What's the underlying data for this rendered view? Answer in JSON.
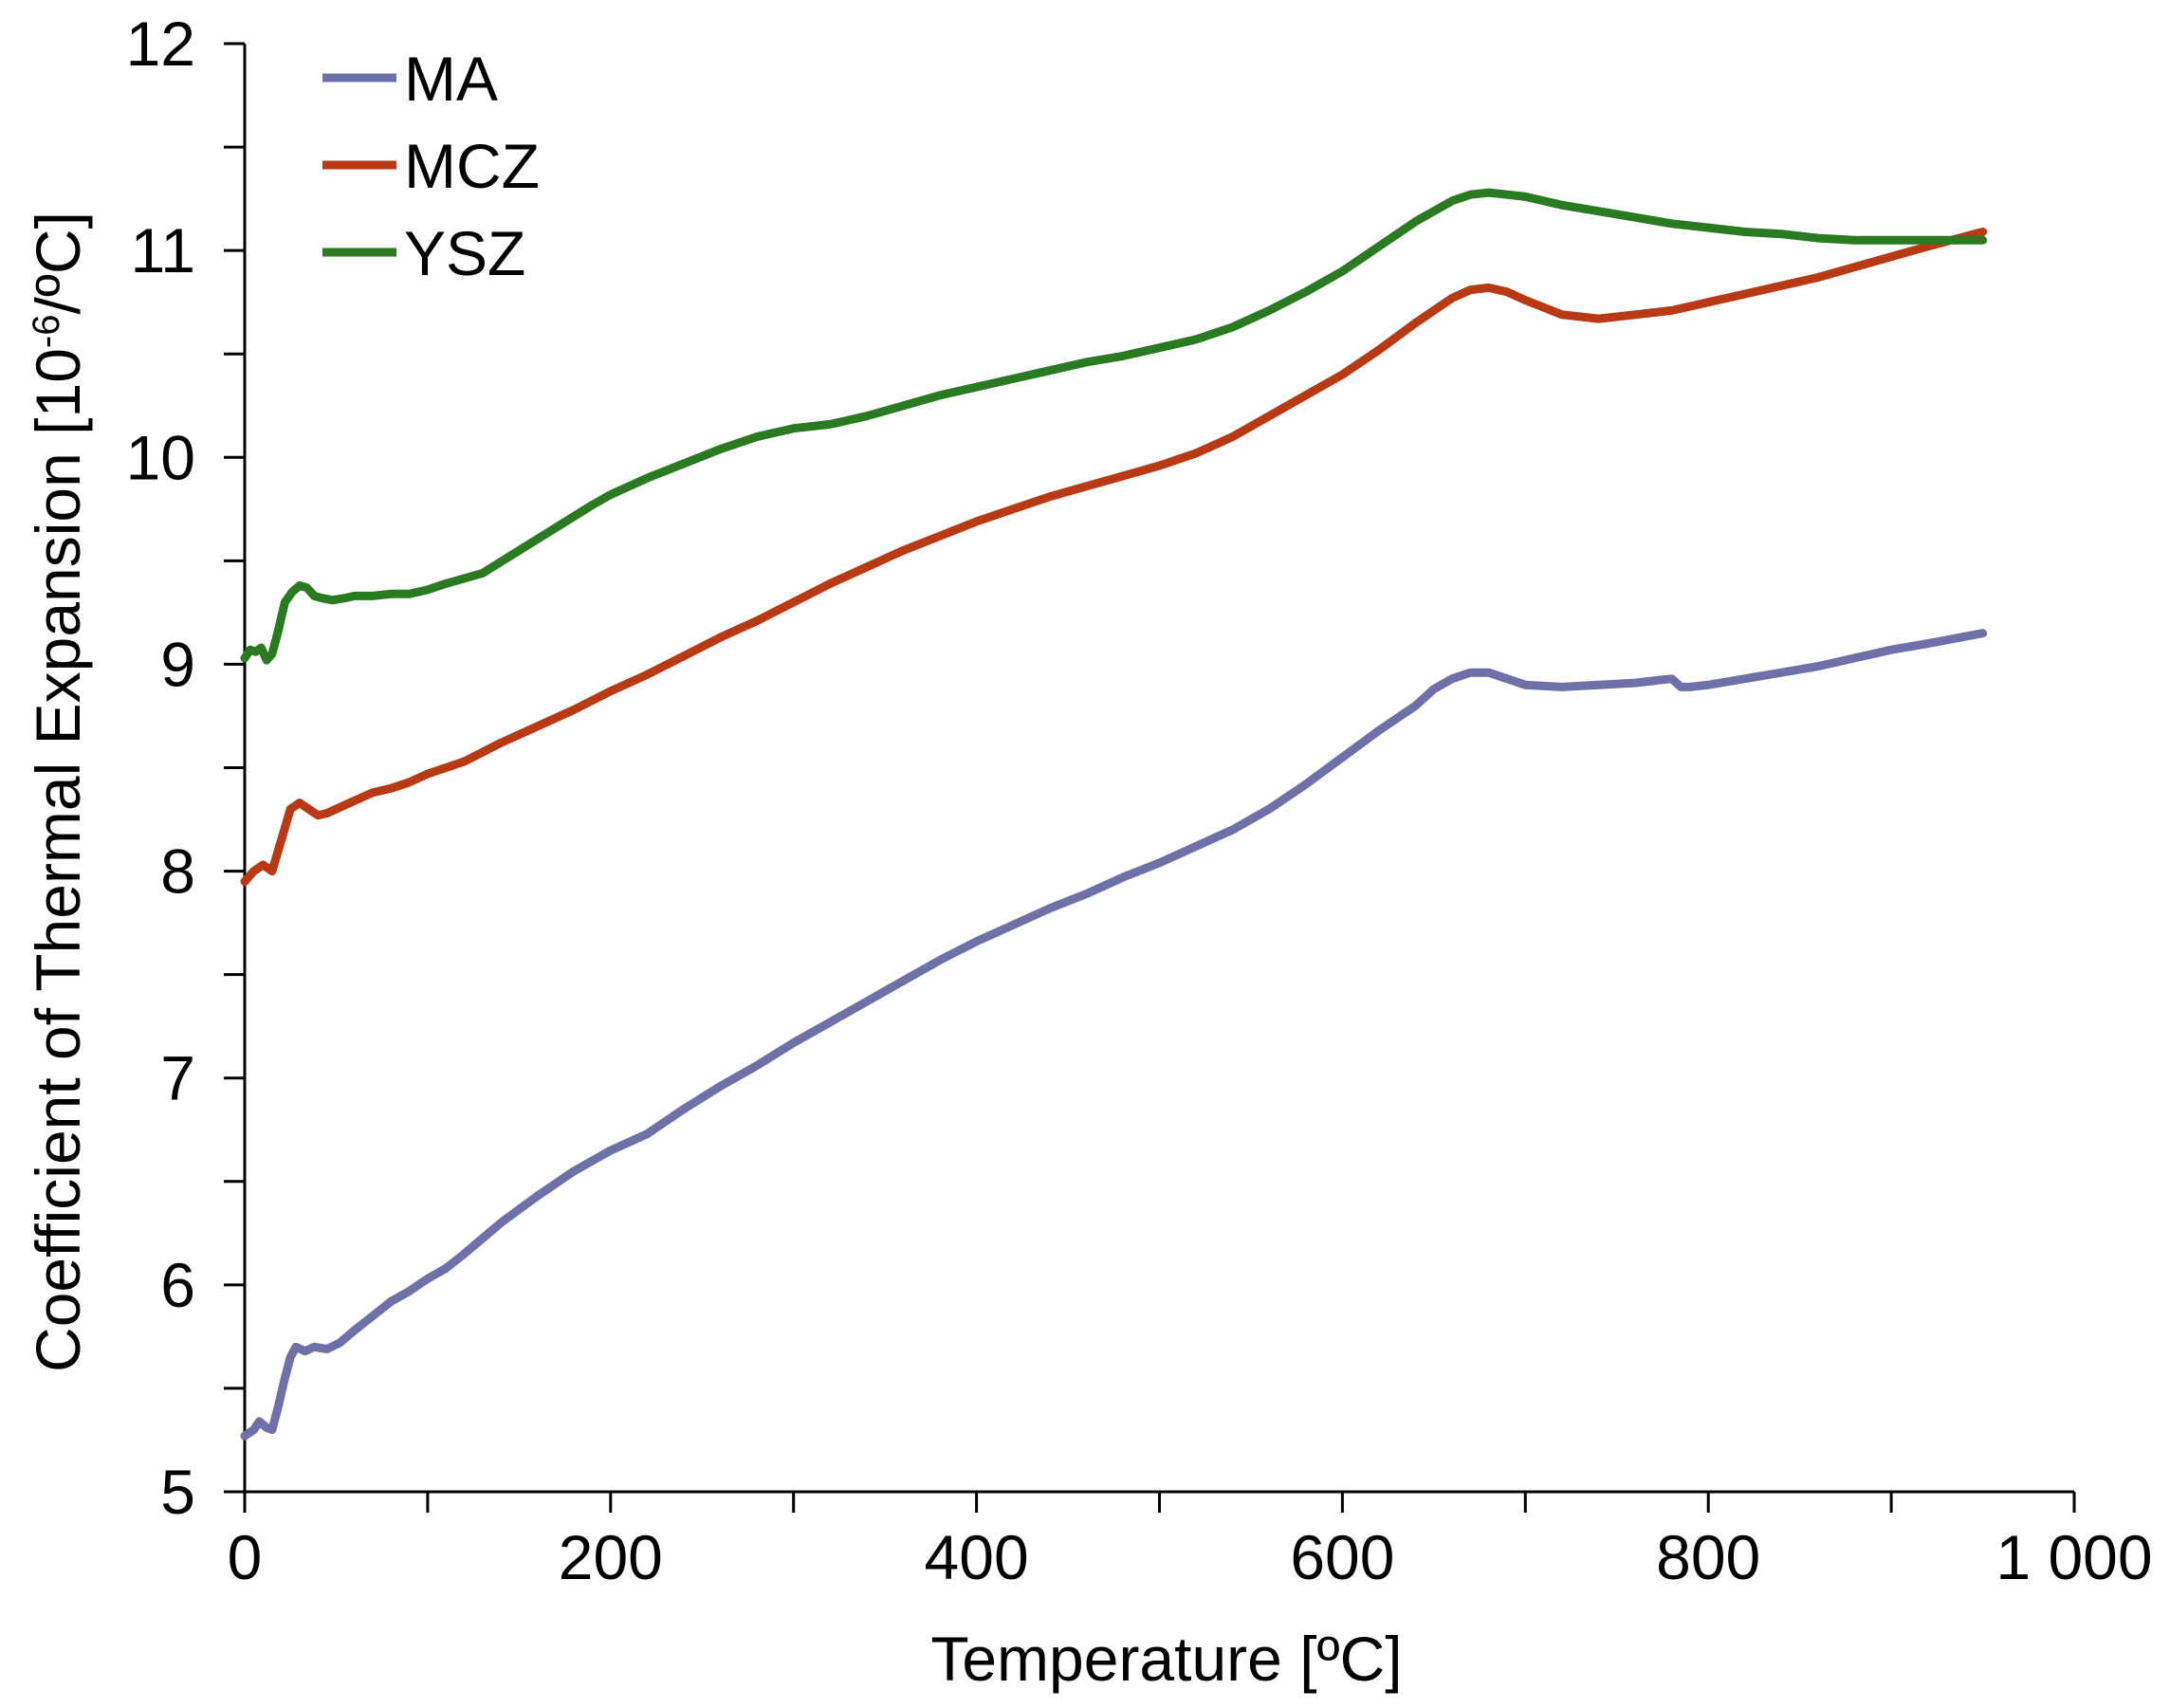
{
  "chart_data": {
    "type": "line",
    "title": "",
    "xlabel": "Temperature [ºC]",
    "ylabel_main": "Coefficient of Thermal Expansion [10",
    "ylabel_sup": "-6",
    "ylabel_tail": "/ºC]",
    "xlim": [
      0,
      1000
    ],
    "ylim": [
      5,
      12
    ],
    "x_ticks": [
      0,
      200,
      400,
      600,
      800,
      1000
    ],
    "x_tick_labels": [
      "0",
      "200",
      "400",
      "600",
      "800",
      "1 000"
    ],
    "x_minor_step": 100,
    "y_ticks": [
      5,
      6,
      7,
      8,
      9,
      10,
      11,
      12
    ],
    "y_tick_labels": [
      "5",
      "6",
      "7",
      "8",
      "9",
      "10",
      "11",
      "12"
    ],
    "y_minor_step": 0.5,
    "grid": false,
    "legend_position": "top-left",
    "series": [
      {
        "name": "MA",
        "color": "#7070a8",
        "x": [
          0,
          5,
          8,
          12,
          15,
          18,
          22,
          25,
          28,
          33,
          38,
          45,
          52,
          60,
          70,
          80,
          90,
          100,
          110,
          120,
          140,
          160,
          180,
          200,
          220,
          240,
          260,
          280,
          300,
          320,
          340,
          360,
          380,
          400,
          420,
          440,
          460,
          480,
          500,
          520,
          540,
          560,
          580,
          600,
          620,
          640,
          650,
          660,
          670,
          680,
          690,
          700,
          720,
          740,
          760,
          780,
          785,
          790,
          800,
          820,
          840,
          860,
          880,
          900,
          920,
          950
        ],
        "y": [
          5.27,
          5.3,
          5.34,
          5.31,
          5.3,
          5.4,
          5.55,
          5.65,
          5.7,
          5.68,
          5.7,
          5.69,
          5.72,
          5.78,
          5.85,
          5.92,
          5.97,
          6.03,
          6.08,
          6.15,
          6.3,
          6.43,
          6.55,
          6.65,
          6.73,
          6.85,
          6.96,
          7.06,
          7.17,
          7.27,
          7.37,
          7.47,
          7.57,
          7.66,
          7.74,
          7.82,
          7.89,
          7.97,
          8.04,
          8.12,
          8.2,
          8.3,
          8.42,
          8.55,
          8.68,
          8.8,
          8.88,
          8.93,
          8.96,
          8.96,
          8.93,
          8.9,
          8.89,
          8.9,
          8.91,
          8.93,
          8.89,
          8.89,
          8.9,
          8.93,
          8.96,
          8.99,
          9.03,
          9.07,
          9.1,
          9.15
        ]
      },
      {
        "name": "MCZ",
        "color": "#b83a14",
        "x": [
          0,
          5,
          10,
          15,
          20,
          25,
          30,
          35,
          40,
          45,
          50,
          60,
          70,
          80,
          90,
          100,
          120,
          140,
          160,
          180,
          200,
          220,
          240,
          260,
          280,
          300,
          320,
          340,
          360,
          380,
          400,
          420,
          440,
          460,
          480,
          500,
          520,
          540,
          560,
          580,
          600,
          620,
          640,
          660,
          670,
          680,
          690,
          700,
          720,
          740,
          760,
          780,
          800,
          820,
          840,
          860,
          880,
          900,
          920,
          950
        ],
        "y": [
          7.95,
          8.0,
          8.03,
          8.0,
          8.15,
          8.3,
          8.33,
          8.3,
          8.27,
          8.28,
          8.3,
          8.34,
          8.38,
          8.4,
          8.43,
          8.47,
          8.53,
          8.62,
          8.7,
          8.78,
          8.87,
          8.95,
          9.04,
          9.13,
          9.21,
          9.3,
          9.39,
          9.47,
          9.55,
          9.62,
          9.69,
          9.75,
          9.81,
          9.86,
          9.91,
          9.96,
          10.02,
          10.1,
          10.2,
          10.3,
          10.4,
          10.52,
          10.65,
          10.77,
          10.81,
          10.82,
          10.8,
          10.76,
          10.69,
          10.67,
          10.69,
          10.71,
          10.75,
          10.79,
          10.83,
          10.87,
          10.92,
          10.97,
          11.02,
          11.09
        ]
      },
      {
        "name": "YSZ",
        "color": "#2a7a22",
        "x": [
          0,
          3,
          6,
          9,
          12,
          15,
          18,
          22,
          26,
          30,
          34,
          38,
          42,
          48,
          55,
          60,
          70,
          80,
          90,
          100,
          110,
          130,
          150,
          170,
          190,
          200,
          220,
          240,
          260,
          280,
          300,
          320,
          340,
          360,
          380,
          400,
          420,
          440,
          460,
          480,
          500,
          520,
          540,
          560,
          580,
          600,
          620,
          640,
          660,
          670,
          680,
          690,
          700,
          720,
          740,
          760,
          780,
          800,
          820,
          840,
          860,
          880,
          900,
          920,
          950
        ],
        "y": [
          9.03,
          9.07,
          9.06,
          9.08,
          9.02,
          9.05,
          9.15,
          9.3,
          9.35,
          9.38,
          9.37,
          9.33,
          9.32,
          9.31,
          9.32,
          9.33,
          9.33,
          9.34,
          9.34,
          9.36,
          9.39,
          9.44,
          9.55,
          9.66,
          9.77,
          9.82,
          9.9,
          9.97,
          10.04,
          10.1,
          10.14,
          10.16,
          10.2,
          10.25,
          10.3,
          10.34,
          10.38,
          10.42,
          10.46,
          10.49,
          10.53,
          10.57,
          10.63,
          10.71,
          10.8,
          10.9,
          11.02,
          11.14,
          11.24,
          11.27,
          11.28,
          11.27,
          11.26,
          11.22,
          11.19,
          11.16,
          11.13,
          11.11,
          11.09,
          11.08,
          11.06,
          11.05,
          11.05,
          11.05,
          11.05
        ]
      }
    ]
  }
}
